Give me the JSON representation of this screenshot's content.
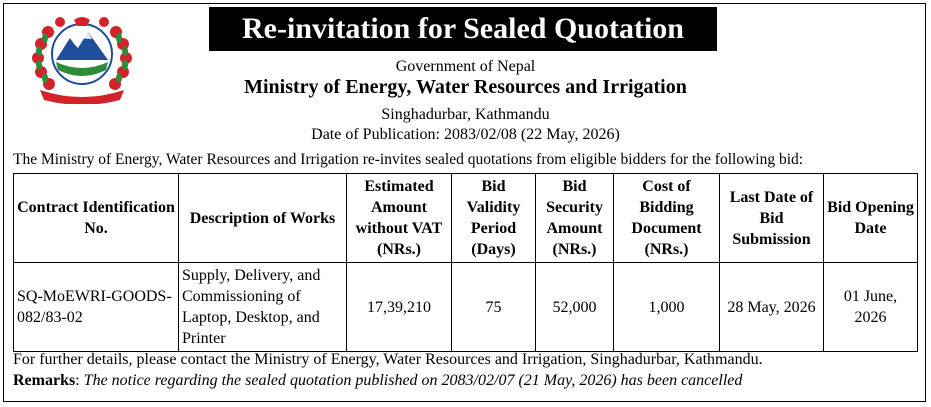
{
  "title": "Re-invitation for Sealed Quotation",
  "header": {
    "line1": "Government of Nepal",
    "line2": "Ministry of Energy, Water Resources and Irrigation",
    "line3": "Singhadurbar, Kathmandu",
    "line4": "Date of Publication: 2083/02/08 (22 May, 2026)"
  },
  "intro": "The Ministry of Energy, Water Resources and Irrigation re-invites sealed quotations from eligible bidders for the following bid:",
  "table": {
    "headers": [
      "Contract Identification No.",
      "Description of Works",
      "Estimated Amount without VAT (NRs.)",
      "Bid Validity Period (Days)",
      "Bid Security Amount (NRs.)",
      "Cost of Bidding Document (NRs.)",
      "Last Date of Bid Submission",
      "Bid Opening Date"
    ],
    "rows": [
      {
        "contract_id": "SQ-MoEWRI-GOODS- 082/83-02",
        "description": "Supply, Delivery, and Commissioning of Laptop, Desktop, and Printer",
        "estimated_amount": "17,39,210",
        "validity": "75",
        "security": "52,000",
        "cost": "1,000",
        "last_date": "28 May, 2026",
        "opening_date": "01 June, 2026"
      }
    ]
  },
  "footer": {
    "line1": "For further details, please contact the Ministry of Energy, Water Resources and Irrigation, Singhadurbar, Kathmandu.",
    "remarks_label": "Remarks",
    "remarks_text": "The notice regarding the sealed quotation published on 2083/02/07 (21 May, 2026) has been cancelled"
  },
  "colors": {
    "emblem_red": "#d2232a",
    "emblem_blue": "#1f4e9c",
    "emblem_green": "#2e8b3a"
  },
  "icons": {
    "emblem": "nepal-government-emblem"
  }
}
